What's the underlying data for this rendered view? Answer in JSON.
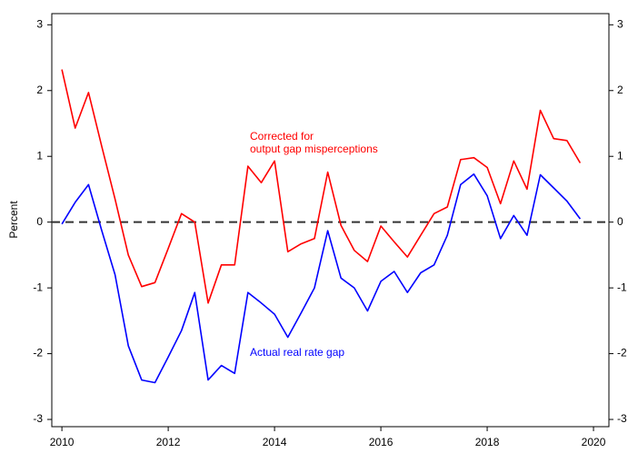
{
  "chart_data": {
    "type": "line",
    "y_label": "Percent",
    "x": [
      2010,
      2010.25,
      2010.5,
      2010.75,
      2011,
      2011.25,
      2011.5,
      2011.75,
      2012,
      2012.25,
      2012.5,
      2012.75,
      2013,
      2013.25,
      2013.5,
      2013.75,
      2014,
      2014.25,
      2014.5,
      2014.75,
      2015,
      2015.25,
      2015.5,
      2015.75,
      2016,
      2016.25,
      2016.5,
      2016.75,
      2017,
      2017.25,
      2017.5,
      2017.75,
      2018,
      2018.25,
      2018.5,
      2018.75,
      2019,
      2019.25,
      2019.5,
      2019.75
    ],
    "series": [
      {
        "color": "#ff0000",
        "values": [
          2.32,
          1.43,
          1.97,
          1.15,
          0.35,
          -0.5,
          -0.98,
          -0.92,
          -0.4,
          0.13,
          0.0,
          -1.23,
          -0.65,
          -0.65,
          0.85,
          0.6,
          0.93,
          -0.45,
          -0.33,
          -0.25,
          0.76,
          -0.05,
          -0.43,
          -0.6,
          -0.06,
          -0.3,
          -0.53,
          -0.2,
          0.13,
          0.23,
          0.95,
          0.98,
          0.83,
          0.28,
          0.93,
          0.5,
          1.7,
          1.27,
          1.24,
          0.9
        ],
        "annotation": [
          "Corrected for",
          "output gap misperceptions"
        ]
      },
      {
        "color": "#0000ff",
        "values": [
          -0.03,
          0.3,
          0.57,
          -0.13,
          -0.8,
          -1.88,
          -2.4,
          -2.44,
          -2.05,
          -1.65,
          -1.07,
          -2.4,
          -2.18,
          -2.3,
          -1.07,
          -1.23,
          -1.4,
          -1.75,
          -1.38,
          -1.0,
          -0.13,
          -0.85,
          -1.0,
          -1.35,
          -0.9,
          -0.75,
          -1.07,
          -0.77,
          -0.65,
          -0.2,
          0.57,
          0.73,
          0.4,
          -0.25,
          0.1,
          -0.2,
          0.72,
          0.52,
          0.32,
          0.05
        ],
        "annotation": [
          "Actual real rate gap"
        ]
      }
    ],
    "xlim": [
      2009.81,
      2020.29
    ],
    "xticks": [
      2010,
      2012,
      2014,
      2016,
      2018,
      2020
    ],
    "ylim": [
      -3.11,
      3.17
    ],
    "yticks": [
      -3,
      -2,
      -1,
      0,
      1,
      2,
      3
    ],
    "hline": 0,
    "right_axis_mirror": true
  }
}
